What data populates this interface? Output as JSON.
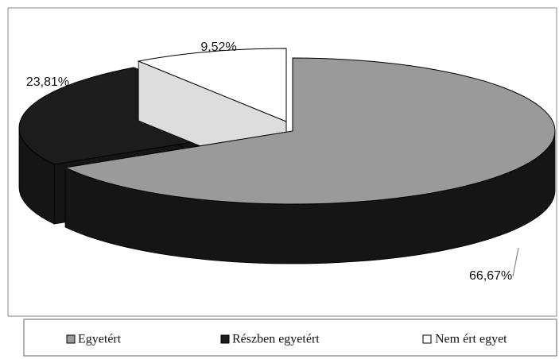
{
  "chart_data": {
    "type": "pie3d",
    "categories": [
      "Egyetért",
      "Részben egyetért",
      "Nem ért egyet"
    ],
    "values": [
      66.67,
      23.81,
      9.52
    ],
    "value_labels": [
      "66,67%",
      "23,81%",
      "9,52%"
    ],
    "colors": [
      "#9a9a9a",
      "#1c1c1c",
      "#ffffff"
    ],
    "legend": "bottom"
  }
}
